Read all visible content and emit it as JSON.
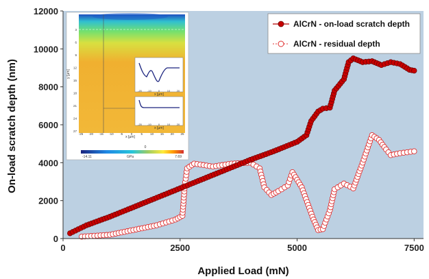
{
  "chart_data": {
    "type": "scatter",
    "xlabel": "Applied Load (mN)",
    "ylabel": "On-load scratch depth (nm)",
    "xlim": [
      0,
      7700
    ],
    "ylim": [
      0,
      12000
    ],
    "xticks": [
      "0",
      "2500",
      "5000",
      "7500"
    ],
    "yticks": [
      "0",
      "2000",
      "4000",
      "6000",
      "8000",
      "10000",
      "12000"
    ],
    "legend_position": "top-right",
    "plot_background": "#bcd0e2",
    "series": [
      {
        "name": "AlCrN - on-load scratch depth",
        "color": "#b00000",
        "marker": "filled-circle",
        "points": [
          [
            150,
            280
          ],
          [
            500,
            700
          ],
          [
            1000,
            1150
          ],
          [
            1500,
            1650
          ],
          [
            2000,
            2150
          ],
          [
            2500,
            2650
          ],
          [
            3000,
            3150
          ],
          [
            3500,
            3650
          ],
          [
            4000,
            4150
          ],
          [
            4500,
            4600
          ],
          [
            5000,
            5100
          ],
          [
            5200,
            5450
          ],
          [
            5300,
            6200
          ],
          [
            5450,
            6700
          ],
          [
            5550,
            6850
          ],
          [
            5700,
            6900
          ],
          [
            5800,
            7800
          ],
          [
            6000,
            8400
          ],
          [
            6100,
            9300
          ],
          [
            6200,
            9500
          ],
          [
            6400,
            9300
          ],
          [
            6600,
            9350
          ],
          [
            6800,
            9150
          ],
          [
            7000,
            9300
          ],
          [
            7200,
            9200
          ],
          [
            7400,
            8900
          ],
          [
            7500,
            8850
          ]
        ]
      },
      {
        "name": "AlCrN - residual depth",
        "color": "#e03030",
        "marker": "open-circle",
        "points": [
          [
            400,
            100
          ],
          [
            1000,
            200
          ],
          [
            1500,
            450
          ],
          [
            2000,
            700
          ],
          [
            2400,
            1000
          ],
          [
            2550,
            1200
          ],
          [
            2600,
            2800
          ],
          [
            2650,
            3700
          ],
          [
            2800,
            3950
          ],
          [
            3200,
            3800
          ],
          [
            3600,
            3950
          ],
          [
            4000,
            4000
          ],
          [
            4200,
            3700
          ],
          [
            4300,
            2700
          ],
          [
            4450,
            2300
          ],
          [
            4600,
            2500
          ],
          [
            4800,
            2800
          ],
          [
            4900,
            3500
          ],
          [
            5100,
            2700
          ],
          [
            5350,
            1000
          ],
          [
            5450,
            450
          ],
          [
            5550,
            500
          ],
          [
            5700,
            1500
          ],
          [
            5800,
            2600
          ],
          [
            6000,
            2900
          ],
          [
            6200,
            2650
          ],
          [
            6400,
            4000
          ],
          [
            6600,
            5450
          ],
          [
            6750,
            5200
          ],
          [
            6900,
            4700
          ],
          [
            7000,
            4400
          ],
          [
            7200,
            4500
          ],
          [
            7500,
            4600
          ]
        ]
      }
    ],
    "inset": {
      "colorbar_min": "-14.11",
      "colorbar_max": "7.69",
      "colorbar_mid": "0",
      "colorbar_unit": "GPa",
      "x_axis_label": "x [µm]",
      "y_axis_label": "y [µm]",
      "main_y_ticks": [
        "3",
        "6",
        "9",
        "12",
        "15",
        "18",
        "21",
        "24",
        "27"
      ],
      "main_x_ticks": [
        "-25",
        "-20",
        "-15",
        "-10",
        "-5",
        "0",
        "5",
        "10",
        "15",
        "20",
        "25"
      ],
      "sub_x_ticks": [
        "-20",
        "-10",
        "0",
        "10",
        "20"
      ]
    }
  }
}
